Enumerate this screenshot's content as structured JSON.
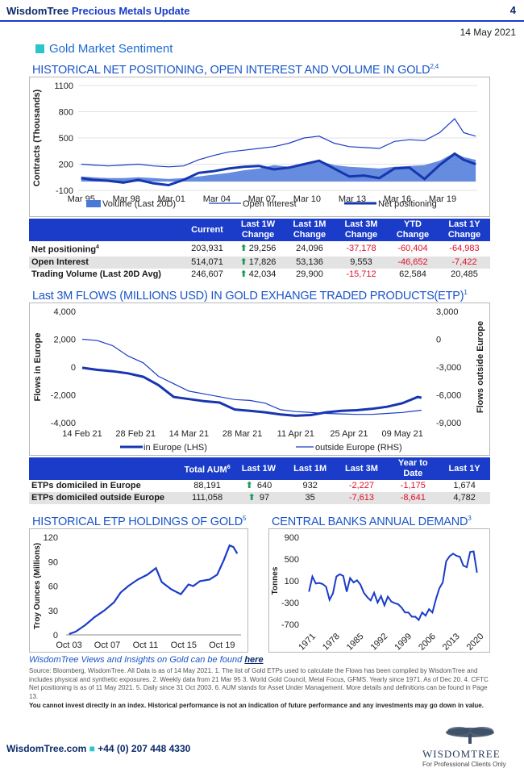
{
  "header": {
    "title_brand": "WisdomTree",
    "title_rest": "Precious Metals Update",
    "page_number": "4",
    "date": "14 May 2021"
  },
  "section": {
    "title": "Gold Market Sentiment"
  },
  "chart1": {
    "title": "HISTORICAL NET POSITIONING, OPEN INTEREST AND VOLUME IN GOLD",
    "title_sup": "2,4",
    "legend": [
      "Volume (Last 20D)",
      "Open Interest",
      "Net positioning"
    ]
  },
  "table1": {
    "headers": [
      "",
      "Current",
      "Last 1W Change",
      "Last 1M Change",
      "Last 3M Change",
      "YTD Change",
      "Last 1Y Change"
    ],
    "rows": [
      {
        "label": "Net positioning",
        "sup": "4",
        "current": "203,931",
        "w1": "29,256",
        "w1_up": true,
        "m1": "24,096",
        "m3": "-37,178",
        "ytd": "-60,404",
        "y1": "-64,983"
      },
      {
        "label": "Open Interest",
        "sup": "",
        "current": "514,071",
        "w1": "17,826",
        "w1_up": true,
        "m1": "53,136",
        "m3": "9,553",
        "ytd": "-46,652",
        "y1": "-7,422"
      },
      {
        "label": "Trading Volume (Last 20D Avg)",
        "sup": "",
        "current": "246,607",
        "w1": "42,034",
        "w1_up": true,
        "m1": "29,900",
        "m3": "-15,712",
        "ytd": "62,584",
        "y1": "20,485"
      }
    ]
  },
  "chart2": {
    "title": "Last 3M FLOWS (MILLIONS USD) IN GOLD EXHANGE TRADED PRODUCTS(ETP)",
    "title_sup": "1",
    "legend": [
      "in Europe (LHS)",
      "outside Europe (RHS)"
    ]
  },
  "table2": {
    "headers": [
      "",
      "Total AUM",
      "Last 1W",
      "Last 1M",
      "Last 3M",
      "Year to Date",
      "Last 1Y"
    ],
    "aum_sup": "6",
    "rows": [
      {
        "label": "ETPs domiciled in Europe",
        "aum": "88,191",
        "w1": "640",
        "m1": "932",
        "m3": "-2,227",
        "ytd": "-1,175",
        "y1": "1,674"
      },
      {
        "label": "ETPs domiciled outside Europe",
        "aum": "111,058",
        "w1": "97",
        "m1": "35",
        "m3": "-7,613",
        "ytd": "-8,641",
        "y1": "4,782"
      }
    ]
  },
  "chart3": {
    "title": "HISTORICAL ETP HOLDINGS OF GOLD",
    "title_sup": "5"
  },
  "chart4": {
    "title": "CENTRAL BANKS ANNUAL DEMAND",
    "title_sup": "3"
  },
  "chart_data": [
    {
      "type": "line",
      "title": "HISTORICAL NET POSITIONING, OPEN INTEREST AND VOLUME IN GOLD",
      "ylabel": "Contracts (Thousands)",
      "ylim": [
        -100,
        1100
      ],
      "yticks": [
        "1100",
        "800",
        "500",
        "200",
        "-100"
      ],
      "xticks": [
        "Mar 95",
        "Mar 98",
        "Mar 01",
        "Mar 04",
        "Mar 07",
        "Mar 10",
        "Mar 13",
        "Mar 16",
        "Mar 19"
      ],
      "x": [
        1995.2,
        1996,
        1997,
        1998,
        1999,
        2000,
        2001,
        2002,
        2003,
        2004,
        2005,
        2006,
        2007,
        2008,
        2009,
        2010,
        2011,
        2012,
        2013,
        2014,
        2015,
        2016,
        2017,
        2018,
        2019,
        2020,
        2020.6,
        2021.4
      ],
      "series": [
        {
          "name": "Volume (Last 20D)",
          "values": [
            60,
            50,
            40,
            40,
            50,
            40,
            30,
            40,
            60,
            80,
            100,
            130,
            150,
            190,
            170,
            200,
            240,
            190,
            170,
            160,
            150,
            170,
            180,
            190,
            240,
            330,
            280,
            250
          ]
        },
        {
          "name": "Open Interest",
          "values": [
            200,
            190,
            180,
            190,
            200,
            180,
            170,
            180,
            250,
            300,
            340,
            360,
            380,
            400,
            440,
            500,
            520,
            440,
            400,
            390,
            380,
            460,
            480,
            470,
            560,
            720,
            560,
            520
          ]
        },
        {
          "name": "Net positioning",
          "values": [
            40,
            20,
            10,
            -10,
            20,
            -20,
            -40,
            20,
            100,
            120,
            150,
            170,
            180,
            140,
            160,
            200,
            240,
            150,
            60,
            70,
            40,
            150,
            160,
            30,
            190,
            320,
            250,
            200
          ]
        }
      ]
    },
    {
      "type": "line",
      "title": "Last 3M FLOWS (MILLIONS USD) IN GOLD EXHANGE TRADED PRODUCTS(ETP)",
      "ylabel": "Flows in Europe",
      "ylabel_right": "Flows outside Europe",
      "ylim": [
        -4000,
        4000
      ],
      "ylim_right": [
        -9000,
        3000
      ],
      "yticks": [
        "4,000",
        "2,000",
        "0",
        "-2,000",
        "-4,000"
      ],
      "yticks_right": [
        "3,000",
        "0",
        "-3,000",
        "-6,000",
        "-9,000"
      ],
      "xticks": [
        "14 Feb 21",
        "28 Feb 21",
        "14 Mar 21",
        "28 Mar 21",
        "11 Apr 21",
        "25 Apr 21",
        "09 May 21"
      ],
      "x": [
        0,
        4,
        8,
        12,
        16,
        20,
        24,
        28,
        32,
        36,
        40,
        44,
        48,
        52,
        56,
        60,
        64,
        68,
        72,
        76,
        80,
        84,
        88,
        89
      ],
      "series": [
        {
          "name": "in Europe (LHS)",
          "axis": "left",
          "values": [
            -50,
            -200,
            -300,
            -450,
            -700,
            -1300,
            -2150,
            -2300,
            -2450,
            -2550,
            -3050,
            -3150,
            -3250,
            -3400,
            -3500,
            -3450,
            -3250,
            -3150,
            -3100,
            -3000,
            -2850,
            -2600,
            -2150,
            -2200
          ]
        },
        {
          "name": "outside Europe (RHS)",
          "axis": "right",
          "values": [
            0,
            -150,
            -700,
            -1800,
            -2550,
            -4000,
            -4800,
            -5600,
            -5900,
            -6200,
            -6500,
            -6600,
            -6900,
            -7600,
            -7800,
            -7900,
            -8000,
            -8050,
            -8100,
            -8100,
            -8000,
            -7900,
            -7700,
            -7650
          ]
        }
      ]
    },
    {
      "type": "line",
      "title": "HISTORICAL ETP HOLDINGS OF GOLD",
      "ylabel": "Troy Ounces (Millions)",
      "ylim": [
        0,
        120
      ],
      "yticks": [
        "120",
        "90",
        "60",
        "30",
        "0"
      ],
      "xticks": [
        "Oct 03",
        "Oct 07",
        "Oct 11",
        "Oct 15",
        "Oct 19"
      ],
      "x": [
        2003.8,
        2004.5,
        2005.5,
        2006.5,
        2007.5,
        2008.5,
        2009.2,
        2010,
        2011,
        2012,
        2012.9,
        2013.5,
        2014.5,
        2015.5,
        2016.3,
        2016.8,
        2017.5,
        2018.5,
        2019.3,
        2020,
        2020.6,
        2021.0,
        2021.4
      ],
      "series": [
        {
          "name": "ETP holdings",
          "values": [
            1,
            4,
            12,
            22,
            30,
            40,
            52,
            60,
            68,
            74,
            82,
            65,
            56,
            50,
            62,
            60,
            66,
            68,
            74,
            92,
            110,
            108,
            100
          ]
        }
      ]
    },
    {
      "type": "line",
      "title": "CENTRAL BANKS ANNUAL DEMAND",
      "ylabel": "Tonnes",
      "ylim": [
        -700,
        900
      ],
      "yticks": [
        "900",
        "500",
        "100",
        "-300",
        "-700"
      ],
      "xticks": [
        "1971",
        "1978",
        "1985",
        "1992",
        "1999",
        "2006",
        "2013",
        "2020"
      ],
      "x": [
        1971,
        1972,
        1973,
        1974,
        1975,
        1976,
        1977,
        1978,
        1979,
        1980,
        1981,
        1982,
        1983,
        1984,
        1985,
        1986,
        1987,
        1988,
        1989,
        1990,
        1991,
        1992,
        1993,
        1994,
        1995,
        1996,
        1997,
        1998,
        1999,
        2000,
        2001,
        2002,
        2003,
        2004,
        2005,
        2006,
        2007,
        2008,
        2009,
        2010,
        2011,
        2012,
        2013,
        2014,
        2015,
        2016,
        2017,
        2018,
        2019,
        2020
      ],
      "series": [
        {
          "name": "Central bank demand",
          "values": [
            -100,
            180,
            50,
            60,
            40,
            -10,
            -250,
            -130,
            180,
            220,
            190,
            -100,
            150,
            70,
            110,
            30,
            -120,
            -200,
            -260,
            -120,
            -300,
            -180,
            -350,
            -190,
            -280,
            -310,
            -330,
            -390,
            -480,
            -480,
            -560,
            -560,
            -620,
            -480,
            -540,
            -420,
            -480,
            -240,
            -40,
            70,
            460,
            550,
            600,
            560,
            540,
            380,
            350,
            630,
            640,
            250
          ]
        }
      ]
    }
  ]
}
